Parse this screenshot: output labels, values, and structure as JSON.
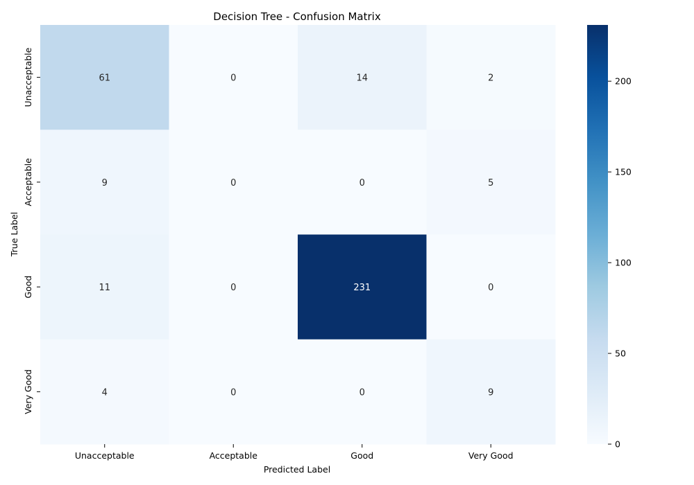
{
  "chart_data": {
    "type": "heatmap",
    "title": "Decision Tree - Confusion Matrix",
    "xlabel": "Predicted Label",
    "ylabel": "True Label",
    "x_categories": [
      "Unacceptable",
      "Acceptable",
      "Good",
      "Very Good"
    ],
    "y_categories": [
      "Unacceptable",
      "Acceptable",
      "Good",
      "Very Good"
    ],
    "values": [
      [
        61,
        0,
        14,
        2
      ],
      [
        9,
        0,
        0,
        5
      ],
      [
        11,
        0,
        231,
        0
      ],
      [
        4,
        0,
        0,
        9
      ]
    ],
    "colorbar": {
      "min": 0,
      "max": 231,
      "ticks": [
        0,
        50,
        100,
        150,
        200
      ],
      "colormap": "Blues"
    },
    "colors": {
      "low": "#f7fbff",
      "high": "#08306b",
      "light_text": "#ffffff",
      "dark_text": "#262626"
    }
  }
}
